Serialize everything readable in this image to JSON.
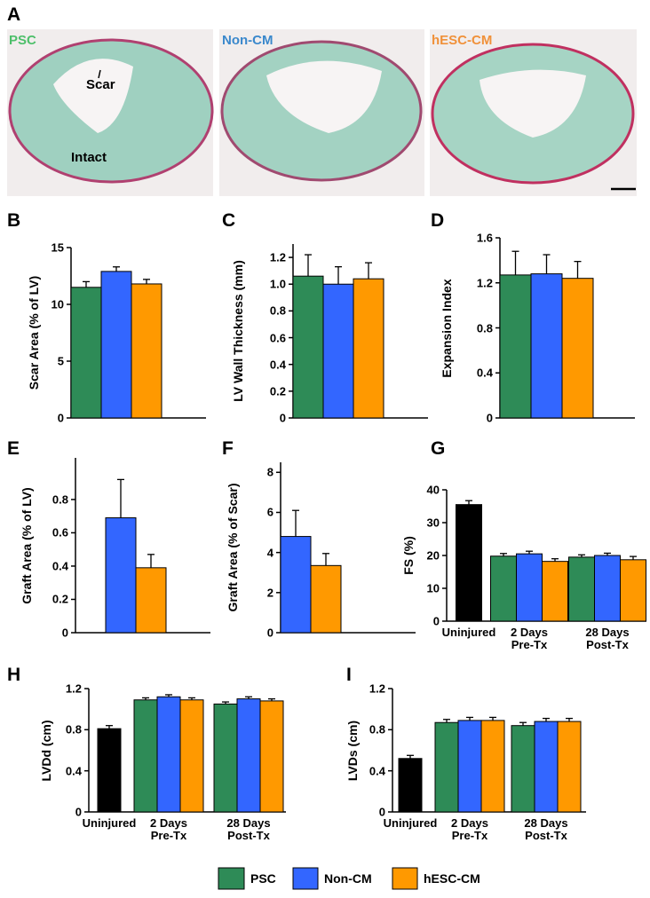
{
  "panel_a": {
    "label": "A",
    "titles": [
      "PSC",
      "Non-CM",
      "hESC-CM"
    ],
    "annotations": [
      "Scar",
      "Intact"
    ]
  },
  "chart_data": [
    {
      "type": "bar",
      "panel": "B",
      "ylabel": "Scar Area (% of LV)",
      "categories": [
        null
      ],
      "series": [
        {
          "name": "PSC",
          "color": "#2e8b57",
          "values": [
            11.5
          ],
          "errors": [
            0.5
          ]
        },
        {
          "name": "Non-CM",
          "color": "#3366ff",
          "values": [
            12.9
          ],
          "errors": [
            0.4
          ]
        },
        {
          "name": "hESC-CM",
          "color": "#ff9900",
          "values": [
            11.8
          ],
          "errors": [
            0.4
          ]
        }
      ],
      "ylim": [
        0,
        15
      ],
      "yticks": [
        0,
        5,
        10,
        15
      ]
    },
    {
      "type": "bar",
      "panel": "C",
      "ylabel": "LV Wall Thickness (mm)",
      "categories": [
        null
      ],
      "series": [
        {
          "name": "PSC",
          "color": "#2e8b57",
          "values": [
            1.06
          ],
          "errors": [
            0.16
          ]
        },
        {
          "name": "Non-CM",
          "color": "#3366ff",
          "values": [
            1.0
          ],
          "errors": [
            0.13
          ]
        },
        {
          "name": "hESC-CM",
          "color": "#ff9900",
          "values": [
            1.04
          ],
          "errors": [
            0.12
          ]
        }
      ],
      "ylim": [
        0,
        1.3
      ],
      "yticks": [
        0,
        0.2,
        0.4,
        0.6,
        0.8,
        {
          "value": 1,
          "label": "1.0"
        },
        1.2
      ]
    },
    {
      "type": "bar",
      "panel": "D",
      "ylabel": "Expansion Index",
      "categories": [
        null
      ],
      "series": [
        {
          "name": "PSC",
          "color": "#2e8b57",
          "values": [
            1.27
          ],
          "errors": [
            0.21
          ]
        },
        {
          "name": "Non-CM",
          "color": "#3366ff",
          "values": [
            1.28
          ],
          "errors": [
            0.17
          ]
        },
        {
          "name": "hESC-CM",
          "color": "#ff9900",
          "values": [
            1.24
          ],
          "errors": [
            0.15
          ]
        }
      ],
      "ylim": [
        0,
        1.6
      ],
      "yticks": [
        0,
        0.4,
        0.8,
        1.2,
        1.6
      ]
    },
    {
      "type": "bar",
      "panel": "E",
      "ylabel": "Graft Area (% of LV)",
      "categories": [
        null
      ],
      "series": [
        {
          "name": "PSC",
          "color": "#2e8b57",
          "values": [
            null
          ],
          "errors": [
            null
          ]
        },
        {
          "name": "Non-CM",
          "color": "#3366ff",
          "values": [
            0.69
          ],
          "errors": [
            0.23
          ]
        },
        {
          "name": "hESC-CM",
          "color": "#ff9900",
          "values": [
            0.39
          ],
          "errors": [
            0.08
          ]
        }
      ],
      "ylim": [
        0,
        1.05
      ],
      "yticks": [
        0,
        0.2,
        0.4,
        0.6,
        0.8
      ]
    },
    {
      "type": "bar",
      "panel": "F",
      "ylabel": "Graft Area (% of Scar)",
      "categories": [
        null
      ],
      "series": [
        {
          "name": "PSC",
          "color": "#2e8b57",
          "values": [
            null
          ],
          "errors": [
            null
          ]
        },
        {
          "name": "Non-CM",
          "color": "#3366ff",
          "values": [
            4.8
          ],
          "errors": [
            1.3
          ]
        },
        {
          "name": "hESC-CM",
          "color": "#ff9900",
          "values": [
            3.35
          ],
          "errors": [
            0.6
          ]
        }
      ],
      "ylim": [
        0,
        8.5
      ],
      "yticks": [
        0,
        2,
        4,
        6,
        8
      ]
    },
    {
      "type": "bar",
      "panel": "G",
      "ylabel": "FS (%)",
      "categories": [
        "Uninjured",
        "2 Days Pre-Tx",
        "28 Days Post-Tx"
      ],
      "series": [
        {
          "color": "#000000",
          "values": [
            35.5,
            null,
            null
          ],
          "errors": [
            1.2,
            null,
            null
          ]
        },
        {
          "name": "PSC",
          "color": "#2e8b57",
          "values": [
            null,
            19.8,
            19.5
          ],
          "errors": [
            null,
            0.8,
            0.7
          ]
        },
        {
          "name": "Non-CM",
          "color": "#3366ff",
          "values": [
            null,
            20.5,
            20.0
          ],
          "errors": [
            null,
            0.8,
            0.7
          ]
        },
        {
          "name": "hESC-CM",
          "color": "#ff9900",
          "values": [
            null,
            18.2,
            18.7
          ],
          "errors": [
            null,
            0.8,
            1.0
          ]
        }
      ],
      "ylim": [
        0,
        40
      ],
      "yticks": [
        0,
        10,
        20,
        30,
        40
      ]
    },
    {
      "type": "bar",
      "panel": "H",
      "ylabel": "LVDd (cm)",
      "categories": [
        "Uninjured",
        "2 Days Pre-Tx",
        "28 Days Post-Tx"
      ],
      "series": [
        {
          "color": "#000000",
          "values": [
            0.81,
            null,
            null
          ],
          "errors": [
            0.03,
            null,
            null
          ]
        },
        {
          "name": "PSC",
          "color": "#2e8b57",
          "values": [
            null,
            1.09,
            1.05
          ],
          "errors": [
            null,
            0.02,
            0.02
          ]
        },
        {
          "name": "Non-CM",
          "color": "#3366ff",
          "values": [
            null,
            1.12,
            1.1
          ],
          "errors": [
            null,
            0.02,
            0.02
          ]
        },
        {
          "name": "hESC-CM",
          "color": "#ff9900",
          "values": [
            null,
            1.09,
            1.08
          ],
          "errors": [
            null,
            0.02,
            0.02
          ]
        }
      ],
      "ylim": [
        0,
        1.2
      ],
      "yticks": [
        0,
        0.4,
        0.8,
        1.2
      ]
    },
    {
      "type": "bar",
      "panel": "I",
      "ylabel": "LVDs (cm)",
      "categories": [
        "Uninjured",
        "2 Days Pre-Tx",
        "28 Days Post-Tx"
      ],
      "series": [
        {
          "color": "#000000",
          "values": [
            0.52,
            null,
            null
          ],
          "errors": [
            0.03,
            null,
            null
          ]
        },
        {
          "name": "PSC",
          "color": "#2e8b57",
          "values": [
            null,
            0.87,
            0.84
          ],
          "errors": [
            null,
            0.03,
            0.03
          ]
        },
        {
          "name": "Non-CM",
          "color": "#3366ff",
          "values": [
            null,
            0.89,
            0.88
          ],
          "errors": [
            null,
            0.03,
            0.03
          ]
        },
        {
          "name": "hESC-CM",
          "color": "#ff9900",
          "values": [
            null,
            0.89,
            0.88
          ],
          "errors": [
            null,
            0.03,
            0.03
          ]
        }
      ],
      "ylim": [
        0,
        1.2
      ],
      "yticks": [
        0,
        0.4,
        0.8,
        1.2
      ]
    }
  ]
}
